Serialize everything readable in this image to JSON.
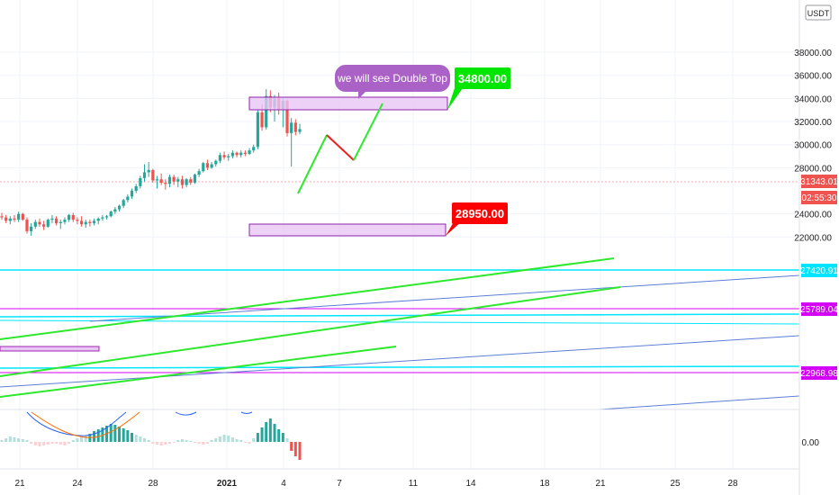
{
  "chart_data": {
    "type": "candlestick",
    "currency_label": "USDT",
    "y_ticks": [
      38000,
      36000,
      34000,
      32000,
      30000,
      28000,
      24000,
      22000
    ],
    "indicator_ticks": [
      0.0
    ],
    "x_ticks": [
      "21",
      "24",
      "28",
      "2021",
      "4",
      "7",
      "11",
      "14",
      "18",
      "21",
      "25",
      "28"
    ],
    "price_badges": [
      {
        "value": "31343.01",
        "color": "#ef5350"
      },
      {
        "value": "02:55:30",
        "color": "#ef5350"
      },
      {
        "value": "27420.91",
        "color": "#00e5ff"
      },
      {
        "value": "25789.04",
        "color": "#d500f9"
      },
      {
        "value": "22968.98",
        "color": "#d500f9"
      }
    ],
    "annotations": {
      "bubble": "we will see Double Top",
      "target_high": "34800.00",
      "target_low": "28950.00"
    },
    "candles": [
      [
        23800,
        24100,
        23500,
        23700
      ],
      [
        23700,
        23900,
        23200,
        23400
      ],
      [
        23400,
        23800,
        23100,
        23600
      ],
      [
        23600,
        23900,
        23300,
        23500
      ],
      [
        23500,
        24200,
        23300,
        24000
      ],
      [
        24000,
        24100,
        23400,
        23500
      ],
      [
        23500,
        23700,
        22300,
        22500
      ],
      [
        22500,
        23200,
        22100,
        22900
      ],
      [
        22900,
        23500,
        22700,
        23300
      ],
      [
        23300,
        23600,
        22900,
        23100
      ],
      [
        23100,
        23400,
        22600,
        22900
      ],
      [
        22900,
        23600,
        22800,
        23500
      ],
      [
        23500,
        23900,
        23200,
        23600
      ],
      [
        23600,
        23800,
        23000,
        23200
      ],
      [
        23200,
        23500,
        22700,
        23300
      ],
      [
        23300,
        23700,
        23100,
        23500
      ],
      [
        23500,
        24000,
        23300,
        23900
      ],
      [
        23900,
        24100,
        23300,
        23500
      ],
      [
        23500,
        23700,
        23100,
        23400
      ],
      [
        23400,
        23800,
        22900,
        23100
      ],
      [
        23100,
        23500,
        22800,
        23300
      ],
      [
        23300,
        23500,
        22900,
        23200
      ],
      [
        23200,
        23600,
        23000,
        23400
      ],
      [
        23400,
        23700,
        23100,
        23600
      ],
      [
        23600,
        23900,
        23400,
        23700
      ],
      [
        23700,
        23900,
        23500,
        23800
      ],
      [
        23800,
        24300,
        23700,
        24200
      ],
      [
        24200,
        24600,
        24000,
        24400
      ],
      [
        24400,
        24800,
        24200,
        24700
      ],
      [
        24700,
        25300,
        24500,
        25200
      ],
      [
        25200,
        25700,
        25000,
        25500
      ],
      [
        25500,
        26200,
        25300,
        26000
      ],
      [
        26000,
        26600,
        25800,
        26400
      ],
      [
        26400,
        27300,
        26200,
        27100
      ],
      [
        27100,
        28300,
        26800,
        27600
      ],
      [
        27600,
        28500,
        27200,
        27800
      ],
      [
        27800,
        27900,
        26700,
        26900
      ],
      [
        26900,
        27300,
        26200,
        27000
      ],
      [
        27000,
        27500,
        26500,
        26700
      ],
      [
        26700,
        27000,
        26100,
        26600
      ],
      [
        26600,
        27400,
        26300,
        27200
      ],
      [
        27200,
        27400,
        26500,
        26800
      ],
      [
        26800,
        27200,
        26300,
        27000
      ],
      [
        27000,
        27300,
        26200,
        26500
      ],
      [
        26500,
        27100,
        26300,
        27000
      ],
      [
        27000,
        27200,
        26500,
        26700
      ],
      [
        26700,
        27500,
        26600,
        27400
      ],
      [
        27400,
        27900,
        27200,
        27700
      ],
      [
        27700,
        28500,
        27600,
        28400
      ],
      [
        28400,
        28700,
        27800,
        28000
      ],
      [
        28000,
        28500,
        27900,
        28300
      ],
      [
        28300,
        28700,
        28100,
        28600
      ],
      [
        28600,
        29300,
        28400,
        29100
      ],
      [
        29100,
        29400,
        28700,
        28900
      ],
      [
        28900,
        29200,
        28600,
        29000
      ],
      [
        29000,
        29500,
        28800,
        29300
      ],
      [
        29300,
        29400,
        28900,
        29100
      ],
      [
        29100,
        29500,
        28900,
        29300
      ],
      [
        29300,
        29500,
        29000,
        29200
      ],
      [
        29200,
        29700,
        29100,
        29500
      ],
      [
        29500,
        30000,
        29300,
        29800
      ],
      [
        29800,
        33000,
        29600,
        32800
      ],
      [
        32800,
        33500,
        31200,
        31500
      ],
      [
        31500,
        34800,
        31300,
        34200
      ],
      [
        34200,
        34700,
        32800,
        33200
      ],
      [
        33200,
        34300,
        32000,
        34000
      ],
      [
        34000,
        34500,
        32600,
        33000
      ],
      [
        33000,
        34000,
        31500,
        33800
      ],
      [
        33800,
        33900,
        30700,
        31000
      ],
      [
        31000,
        32300,
        28100,
        31900
      ],
      [
        31900,
        32200,
        30800,
        31100
      ],
      [
        31100,
        31800,
        30900,
        31343
      ]
    ]
  }
}
